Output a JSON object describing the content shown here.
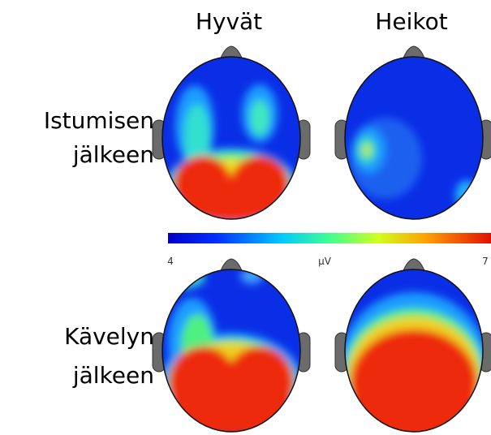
{
  "columns": [
    "Hyvät",
    "Heikot"
  ],
  "rows": [
    [
      "Istumisen",
      "jälkeen"
    ],
    [
      "Kävelyn",
      "jälkeen"
    ]
  ],
  "colorbar": {
    "min": "4",
    "unit": "µV",
    "max": "7"
  }
}
